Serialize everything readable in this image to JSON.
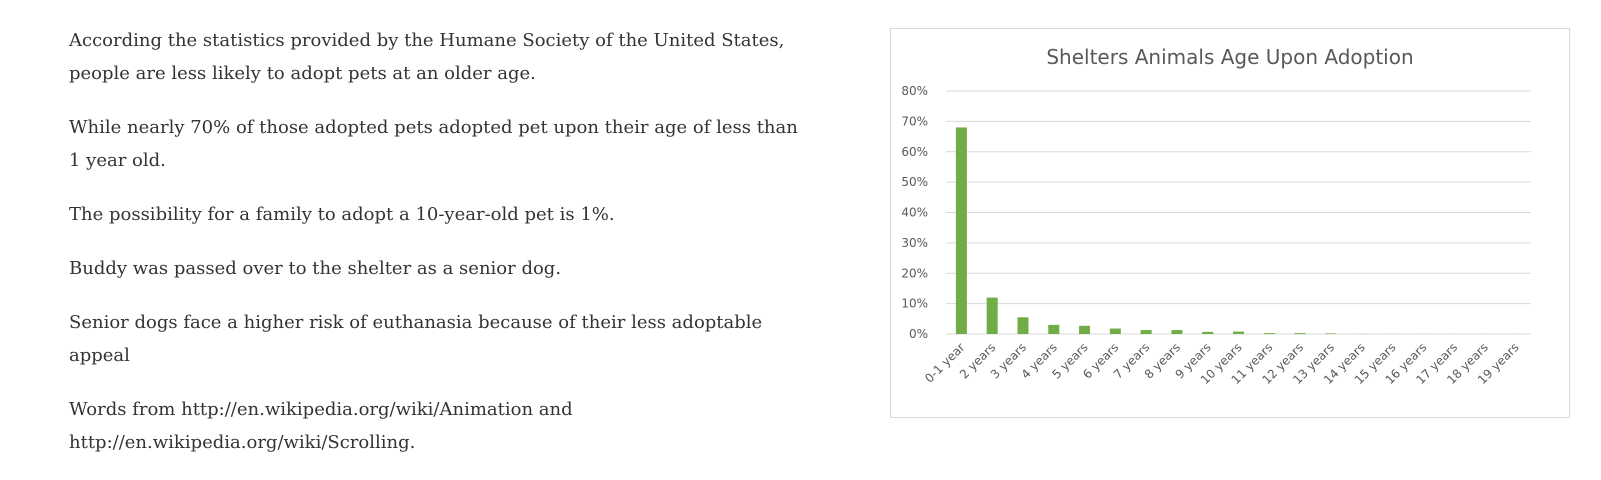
{
  "article": {
    "paragraphs": [
      "According the statistics provided by the Humane Society of the United States, people are less likely to adopt pets at an older age.",
      "While nearly 70% of those adopted pets adopted pet upon their age of less than 1 year old.",
      "The possibility for a family to adopt a 10-year-old pet is 1%.",
      "Buddy was passed over to the shelter as a senior dog.",
      "Senior dogs face a higher risk of euthanasia because of their less adoptable appeal",
      "Words from http://en.wikipedia.org/wiki/Animation and http://en.wikipedia.org/wiki/Scrolling."
    ]
  },
  "chart_data": {
    "type": "bar",
    "title": "Shelters Animals Age Upon Adoption",
    "xlabel": "",
    "ylabel": "",
    "categories": [
      "0-1 year",
      "2 years",
      "3 years",
      "4 years",
      "5 years",
      "6 years",
      "7 years",
      "8 years",
      "9 years",
      "10 years",
      "11 years",
      "12 years",
      "13 years",
      "14 years",
      "15 years",
      "16 years",
      "17 years",
      "18 years",
      "19 years"
    ],
    "values": [
      68,
      12,
      5.5,
      3,
      2.7,
      1.8,
      1.3,
      1.3,
      0.7,
      0.8,
      0.3,
      0.3,
      0.2,
      0.05,
      0.03,
      0.02,
      0.02,
      0.02,
      0.01
    ],
    "ylim": [
      0,
      80
    ],
    "yticks": [
      "0%",
      "10%",
      "20%",
      "30%",
      "40%",
      "50%",
      "60%",
      "70%",
      "80%"
    ],
    "y_tick_values": [
      0,
      10,
      20,
      30,
      40,
      50,
      60,
      70,
      80
    ],
    "grid": true,
    "legend": "none",
    "colors": {
      "bar": "#70ad47",
      "grid": "#d9d9d9",
      "text": "#595959"
    }
  }
}
